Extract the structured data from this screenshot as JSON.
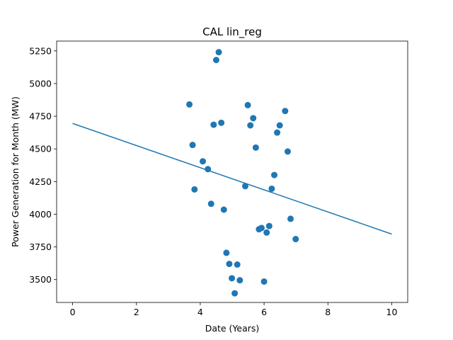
{
  "chart_data": {
    "type": "scatter",
    "title": "CAL lin_reg",
    "xlabel": "Date (Years)",
    "ylabel": "Power Generation for Month (MW)",
    "xlim": [
      -0.5,
      10.5
    ],
    "ylim": [
      3325,
      5325
    ],
    "xticks": [
      0,
      2,
      4,
      6,
      8,
      10
    ],
    "yticks": [
      3500,
      3750,
      4000,
      4250,
      4500,
      4750,
      5000,
      5250
    ],
    "grid": false,
    "point_color": "#1f77b4",
    "line_color": "#1f77b4",
    "series": [
      {
        "kind": "scatter",
        "points": [
          [
            3.66,
            4840
          ],
          [
            3.76,
            4530
          ],
          [
            3.82,
            4190
          ],
          [
            4.08,
            4405
          ],
          [
            4.24,
            4345
          ],
          [
            4.34,
            4080
          ],
          [
            4.42,
            4685
          ],
          [
            4.5,
            5180
          ],
          [
            4.58,
            5240
          ],
          [
            4.66,
            4700
          ],
          [
            4.74,
            4035
          ],
          [
            4.82,
            3705
          ],
          [
            4.91,
            3620
          ],
          [
            4.99,
            3510
          ],
          [
            5.08,
            3395
          ],
          [
            5.16,
            3615
          ],
          [
            5.24,
            3495
          ],
          [
            5.41,
            4215
          ],
          [
            5.49,
            4835
          ],
          [
            5.57,
            4680
          ],
          [
            5.66,
            4735
          ],
          [
            5.74,
            4510
          ],
          [
            5.84,
            3885
          ],
          [
            5.92,
            3895
          ],
          [
            6.0,
            3485
          ],
          [
            6.08,
            3860
          ],
          [
            6.16,
            3910
          ],
          [
            6.24,
            4195
          ],
          [
            6.32,
            4300
          ],
          [
            6.41,
            4625
          ],
          [
            6.49,
            4680
          ],
          [
            6.66,
            4790
          ],
          [
            6.74,
            4480
          ],
          [
            6.83,
            3965
          ],
          [
            6.99,
            3810
          ]
        ]
      },
      {
        "kind": "line",
        "points": [
          [
            0,
            4695
          ],
          [
            10,
            3848
          ]
        ]
      }
    ]
  }
}
